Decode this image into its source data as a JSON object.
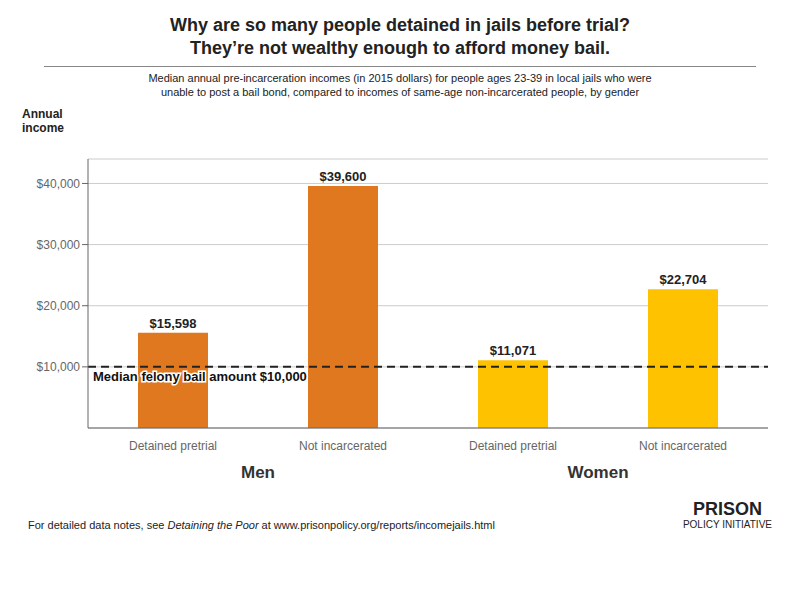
{
  "chart_data": {
    "type": "bar",
    "title": "Why are so many people detained in jails before trial?\nThey’re not wealthy enough to afford money bail.",
    "subtitle": "Median annual pre-incarceration incomes (in 2015 dollars) for people ages 23-39 in local jails who were\nunable to post a bail bond, compared to incomes of same-age non-incarcerated people, by gender",
    "y_label": "Annual\nincome",
    "categories": [
      "Detained pretrial",
      "Not incarcerated",
      "Detained pretrial",
      "Not incarcerated"
    ],
    "groups": [
      "Men",
      "Women"
    ],
    "values": [
      15598,
      39600,
      11071,
      22704
    ],
    "value_labels": [
      "$15,598",
      "$39,600",
      "$11,071",
      "$22,704"
    ],
    "data_labels": true,
    "colors": [
      "#E07820",
      "#E07820",
      "#FFC200",
      "#FFC200"
    ],
    "ylim": [
      0,
      44000
    ],
    "yticks": [
      {
        "value": 10000,
        "label": "$10,000"
      },
      {
        "value": 20000,
        "label": "$20,000"
      },
      {
        "value": 30000,
        "label": "$30,000"
      },
      {
        "value": 40000,
        "label": "$40,000"
      }
    ],
    "grid": true,
    "annotations": [
      {
        "type": "hline",
        "y": 10000,
        "label": "Median felony bail amount $10,000",
        "line_style": "dashed"
      }
    ],
    "source_parts": [
      "For detailed data notes, see ",
      "Detaining the Poor",
      " at www.prisonpolicy.org/reports/incomejails.html"
    ],
    "logo": [
      "PRISON",
      "POLICY INITIATIVE"
    ]
  }
}
